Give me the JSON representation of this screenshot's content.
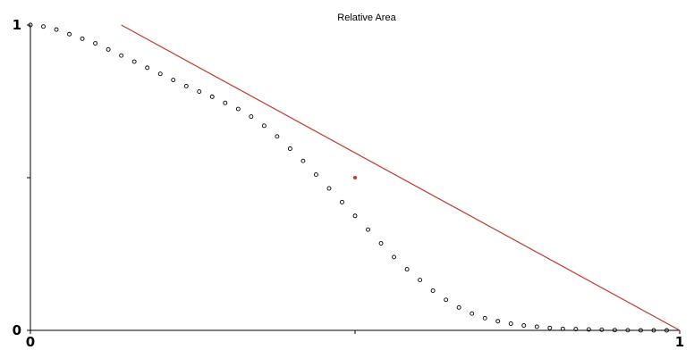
{
  "chart_data": {
    "type": "scatter",
    "title": "Relative Area",
    "xlabel": "",
    "ylabel": "",
    "xlim": [
      0,
      1
    ],
    "ylim": [
      0,
      1
    ],
    "x_tick_labels": [
      {
        "value": 0,
        "label": "0"
      },
      {
        "value": 0.5,
        "label": ""
      },
      {
        "value": 1,
        "label": "1"
      }
    ],
    "y_tick_labels": [
      {
        "value": 0,
        "label": "0"
      },
      {
        "value": 0.5,
        "label": ""
      },
      {
        "value": 1,
        "label": "1"
      }
    ],
    "grid": false,
    "series": [
      {
        "kind": "points",
        "marker": "open-circle",
        "color": "#000000",
        "x": [
          0.0,
          0.02,
          0.04,
          0.06,
          0.08,
          0.1,
          0.12,
          0.14,
          0.16,
          0.18,
          0.2,
          0.22,
          0.24,
          0.26,
          0.28,
          0.3,
          0.32,
          0.34,
          0.36,
          0.38,
          0.4,
          0.42,
          0.44,
          0.46,
          0.48,
          0.5,
          0.52,
          0.54,
          0.56,
          0.58,
          0.6,
          0.62,
          0.64,
          0.66,
          0.68,
          0.7,
          0.72,
          0.74,
          0.76,
          0.78,
          0.8,
          0.82,
          0.84,
          0.86,
          0.88,
          0.9,
          0.92,
          0.94,
          0.96,
          0.98
        ],
        "y": [
          1.0,
          0.995,
          0.985,
          0.97,
          0.955,
          0.94,
          0.92,
          0.9,
          0.88,
          0.86,
          0.84,
          0.82,
          0.8,
          0.782,
          0.765,
          0.745,
          0.725,
          0.7,
          0.67,
          0.635,
          0.595,
          0.555,
          0.51,
          0.465,
          0.42,
          0.375,
          0.33,
          0.285,
          0.24,
          0.2,
          0.165,
          0.13,
          0.1,
          0.075,
          0.055,
          0.04,
          0.03,
          0.022,
          0.016,
          0.012,
          0.008,
          0.005,
          0.004,
          0.003,
          0.002,
          0.001,
          0.0005,
          0.0,
          0.0,
          0.0
        ]
      },
      {
        "kind": "line",
        "color": "#c0392b",
        "x": [
          0.14,
          1.0
        ],
        "y": [
          1.0,
          0.0
        ]
      }
    ],
    "annotations": [
      {
        "kind": "marker",
        "x": 0.5,
        "y": 0.5,
        "color": "#c0392b"
      }
    ]
  }
}
